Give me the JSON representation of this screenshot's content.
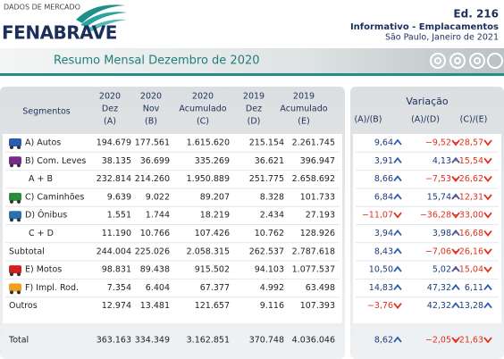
{
  "header": {
    "brand_tagline": "DADOS DE MERCADO",
    "brand": "FENABRAVE",
    "edition": "Ed. 216",
    "publication": "Informativo - Emplacamentos",
    "place_date": "São Paulo, Janeiro de 2021"
  },
  "banner": {
    "title": "Resumo Mensal Dezembro de 2020"
  },
  "table": {
    "segment_header": "Segmentos",
    "columns": [
      [
        "2020",
        "Dez",
        "(A)"
      ],
      [
        "2020",
        "Nov",
        "(B)"
      ],
      [
        "2020",
        "Acumulado",
        "(C)"
      ],
      [
        "2019",
        "Dez",
        "(D)"
      ],
      [
        "2019",
        "Acumulado",
        "(E)"
      ]
    ],
    "variation_title": "Variação",
    "variation_columns": [
      "(A)/(B)",
      "(A)/(D)",
      "(C)/(E)"
    ],
    "rows": [
      {
        "label": "A) Autos",
        "values": [
          "194.679",
          "177.561",
          "1.615.620",
          "215.154",
          "2.261.745"
        ],
        "variations": [
          "9,64",
          "−9,52",
          "−28,57"
        ]
      },
      {
        "label": "B) Com. Leves",
        "values": [
          "38.135",
          "36.699",
          "335.269",
          "36.621",
          "396.947"
        ],
        "variations": [
          "3,91",
          "4,13",
          "−15,54"
        ]
      },
      {
        "label": "A + B",
        "values": [
          "232.814",
          "214.260",
          "1.950.889",
          "251.775",
          "2.658.692"
        ],
        "variations": [
          "8,66",
          "−7,53",
          "−26,62"
        ]
      },
      {
        "label": "C) Caminhões",
        "values": [
          "9.639",
          "9.022",
          "89.207",
          "8.328",
          "101.733"
        ],
        "variations": [
          "6,84",
          "15,74",
          "−12,31"
        ]
      },
      {
        "label": "D) Ônibus",
        "values": [
          "1.551",
          "1.744",
          "18.219",
          "2.434",
          "27.193"
        ],
        "variations": [
          "−11,07",
          "−36,28",
          "−33,00"
        ]
      },
      {
        "label": "C + D",
        "values": [
          "11.190",
          "10.766",
          "107.426",
          "10.762",
          "128.926"
        ],
        "variations": [
          "3,94",
          "3,98",
          "−16,68"
        ]
      },
      {
        "label": "Subtotal",
        "values": [
          "244.004",
          "225.026",
          "2.058.315",
          "262.537",
          "2.787.618"
        ],
        "variations": [
          "8,43",
          "−7,06",
          "−26,16"
        ]
      },
      {
        "label": "E) Motos",
        "values": [
          "98.831",
          "89.438",
          "915.502",
          "94.103",
          "1.077.537"
        ],
        "variations": [
          "10,50",
          "5,02",
          "−15,04"
        ]
      },
      {
        "label": "F) Impl. Rod.",
        "values": [
          "7.354",
          "6.404",
          "67.377",
          "4.992",
          "63.498"
        ],
        "variations": [
          "14,83",
          "47,32",
          "6,11"
        ]
      },
      {
        "label": "Outros",
        "values": [
          "12.974",
          "13.481",
          "121.657",
          "9.116",
          "107.393"
        ],
        "variations": [
          "−3,76",
          "42,32",
          "13,28"
        ]
      }
    ],
    "total": {
      "label": "Total",
      "values": [
        "363.163",
        "334.349",
        "3.162.851",
        "370.748",
        "4.036.046"
      ],
      "variations": [
        "8,62",
        "−2,05",
        "−21,63"
      ]
    }
  }
}
